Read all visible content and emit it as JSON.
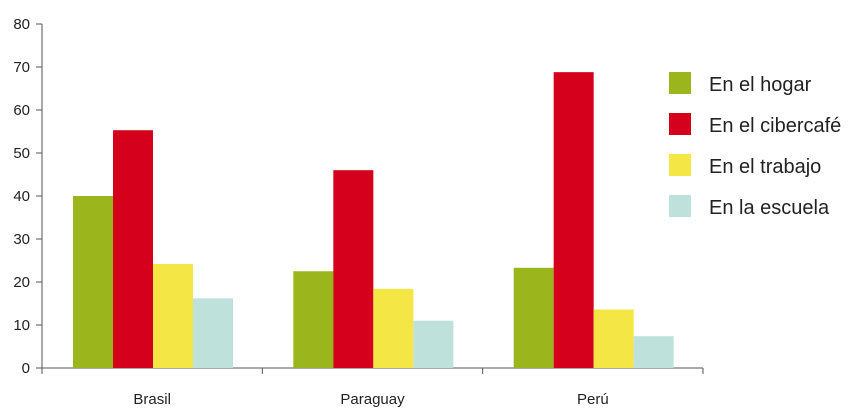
{
  "chart_data": {
    "type": "bar",
    "categories": [
      "Brasil",
      "Paraguay",
      "Perú"
    ],
    "series": [
      {
        "name": "En el hogar",
        "color": "#9bb51d",
        "values": [
          40,
          22.5,
          23.3
        ]
      },
      {
        "name": "En el cibercafé",
        "color": "#d4001c",
        "values": [
          55.3,
          46,
          68.8
        ]
      },
      {
        "name": "En el trabajo",
        "color": "#f3e645",
        "values": [
          24.2,
          18.4,
          13.6
        ]
      },
      {
        "name": "En la escuela",
        "color": "#bfe1dc",
        "values": [
          16.2,
          11,
          7.4
        ]
      }
    ],
    "ylim": [
      0,
      80
    ],
    "yticks": [
      0,
      10,
      20,
      30,
      40,
      50,
      60,
      70,
      80
    ],
    "grid": false,
    "legend_position": "right",
    "title": "",
    "xlabel": "",
    "ylabel": ""
  }
}
